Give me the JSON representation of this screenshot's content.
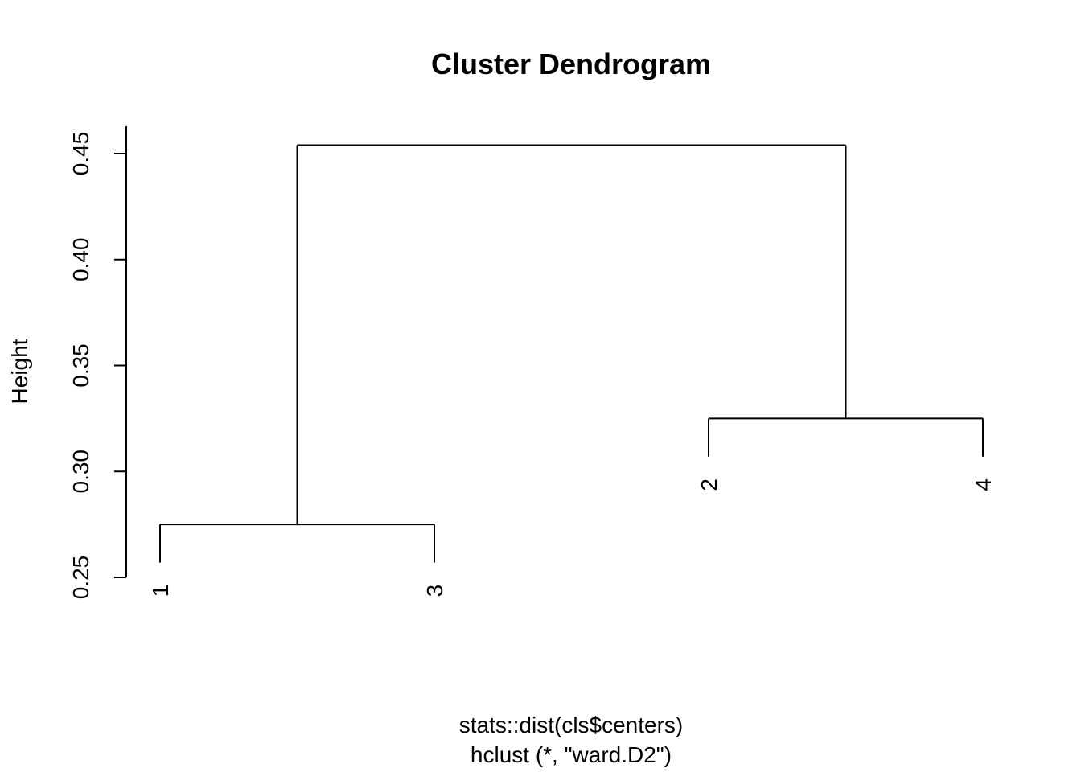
{
  "chart_data": {
    "type": "dendrogram",
    "title": "Cluster Dendrogram",
    "ylabel": "Height",
    "xlabel": "stats::dist(cls$centers)",
    "sublabel": "hclust (*, \"ward.D2\")",
    "ylim": [
      0.25,
      0.45
    ],
    "yticks": [
      0.25,
      0.3,
      0.35,
      0.4,
      0.45
    ],
    "ytick_labels": [
      "0.25",
      "0.30",
      "0.35",
      "0.40",
      "0.45"
    ],
    "leaf_order": [
      "1",
      "3",
      "2",
      "4"
    ],
    "merges": [
      {
        "left": "1",
        "right": "3",
        "height": 0.275
      },
      {
        "left": "2",
        "right": "4",
        "height": 0.325
      },
      {
        "left": "1,3",
        "right": "2,4",
        "height": 0.454
      }
    ],
    "leaf_line_bottoms": [
      0.257,
      0.257,
      0.307,
      0.307
    ]
  }
}
